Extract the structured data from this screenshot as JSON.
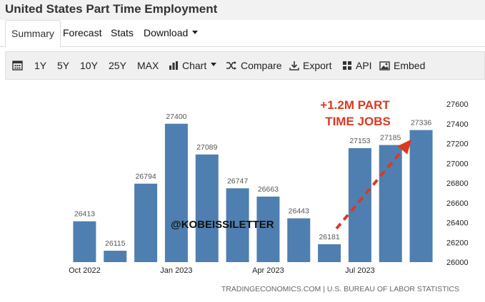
{
  "page": {
    "title": "United States Part Time Employment"
  },
  "tabs": [
    {
      "label": "Summary"
    },
    {
      "label": "Forecast"
    },
    {
      "label": "Stats"
    },
    {
      "label": "Download"
    }
  ],
  "toolbar": {
    "ranges": [
      "1Y",
      "5Y",
      "10Y",
      "25Y",
      "MAX"
    ],
    "chart_label": "Chart",
    "compare_label": "Compare",
    "export_label": "Export",
    "api_label": "API",
    "embed_label": "Embed"
  },
  "colors": {
    "bar": "#4f7fb0",
    "annotation": "#d93a1f"
  },
  "chart_data": {
    "type": "bar",
    "categories": [
      "Oct 2022",
      "Nov 2022",
      "Dec 2022",
      "Jan 2023",
      "Feb 2023",
      "Mar 2023",
      "Apr 2023",
      "May 2023",
      "Jun 2023",
      "Jul 2023",
      "Aug 2023",
      "Sep 2023"
    ],
    "values": [
      26413,
      26115,
      26794,
      27400,
      27089,
      26747,
      26663,
      26443,
      26181,
      27153,
      27185,
      27336
    ],
    "x_tick_labels": [
      "Oct 2022",
      "Jan 2023",
      "Apr 2023",
      "Jul 2023"
    ],
    "x_tick_indices": [
      0,
      3,
      6,
      9
    ],
    "y_ticks": [
      26000,
      26200,
      26400,
      26600,
      26800,
      27000,
      27200,
      27400,
      27600
    ],
    "ylim": [
      26000,
      27600
    ],
    "grid": false,
    "annotation_line1": "+1.2M PART",
    "annotation_line2": "TIME JOBS",
    "arrow_from_index": 8,
    "arrow_to_index": 11,
    "watermark": "@KOBEISSILETTER",
    "source": "TRADINGECONOMICS.COM | U.S. BUREAU OF LABOR STATISTICS"
  }
}
